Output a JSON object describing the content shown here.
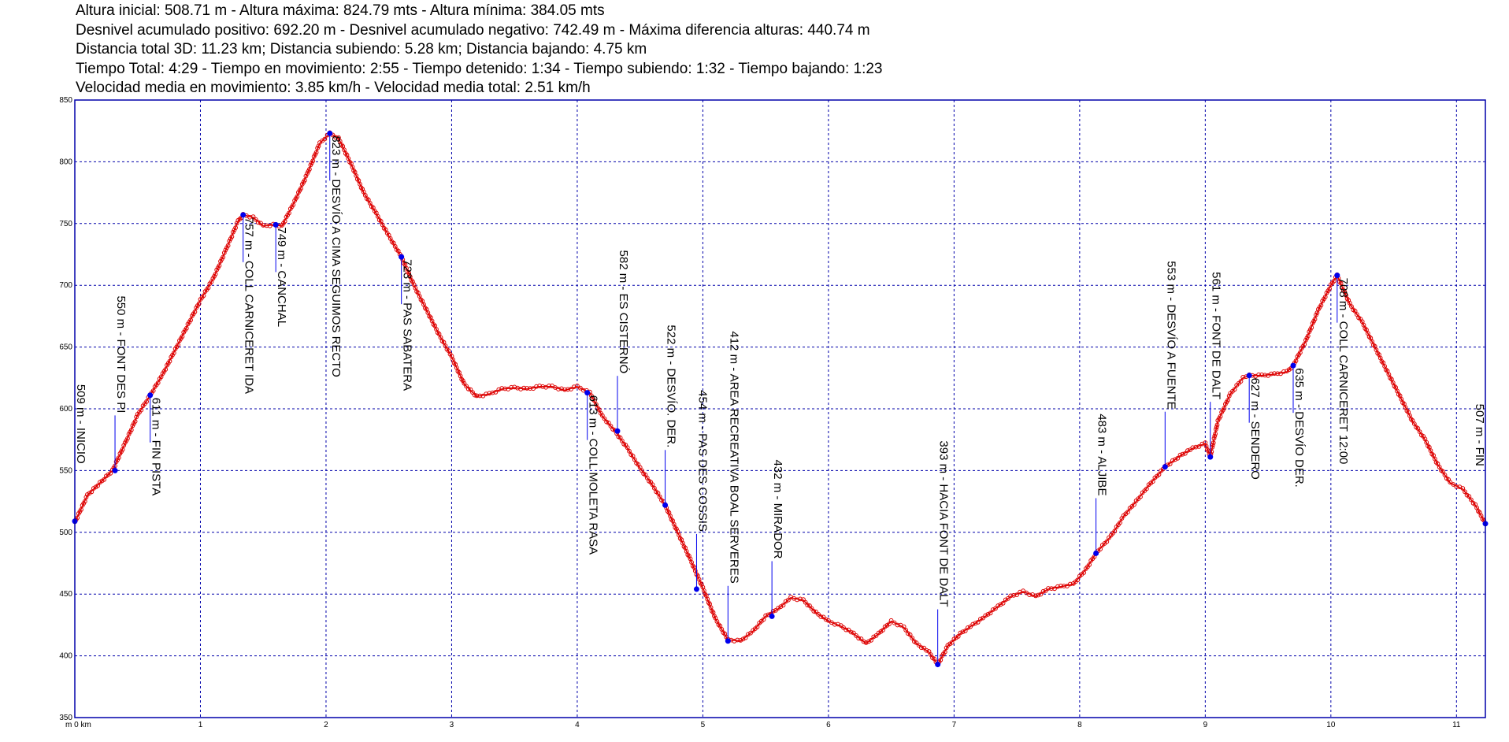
{
  "stats": [
    "Altura inicial: 508.71 m - Altura máxima: 824.79 mts - Altura mínima: 384.05 mts",
    "Desnivel acumulado positivo: 692.20 m  - Desnivel acumulado negativo: 742.49 m - Máxima diferencia alturas: 440.74 m",
    "Distancia total 3D: 11.23 km; Distancia subiendo: 5.28 km; Distancia bajando: 4.75 km",
    "Tiempo Total: 4:29 - Tiempo en movimiento: 2:55 - Tiempo detenido: 1:34 - Tiempo subiendo: 1:32 - Tiempo bajando: 1:23",
    "Velocidad media en movimiento: 3.85 km/h - Velocidad media total: 2.51 km/h"
  ],
  "chart_data": {
    "type": "line",
    "xlim": [
      0,
      11.23
    ],
    "ylim": [
      350,
      850
    ],
    "x_ticks": [
      1,
      2,
      3,
      4,
      5,
      6,
      7,
      8,
      9,
      10,
      11
    ],
    "x_tick_labels": [
      "1",
      "2",
      "3",
      "4",
      "5",
      "6",
      "7",
      "8",
      "9",
      "10",
      "11"
    ],
    "x_origin_label": "m 0 km",
    "y_ticks": [
      350,
      400,
      450,
      500,
      550,
      600,
      650,
      700,
      750,
      800,
      850
    ],
    "y_tick_labels": [
      "350",
      "400",
      "450",
      "500",
      "550",
      "600",
      "650",
      "700",
      "750",
      "800",
      "850"
    ],
    "grid": true,
    "colors": {
      "profile": "#dd0000",
      "waypoint": "#0000ee",
      "grid": "#0000aa",
      "frame": "#0000aa"
    },
    "series": [
      {
        "x": [
          0,
          0.1,
          0.2,
          0.3,
          0.4,
          0.5,
          0.6,
          0.7,
          0.8,
          0.9,
          1.0,
          1.1,
          1.2,
          1.3,
          1.34,
          1.42,
          1.5,
          1.58,
          1.65,
          1.75,
          1.85,
          1.95,
          2.03,
          2.1,
          2.2,
          2.3,
          2.4,
          2.5,
          2.6,
          2.7,
          2.8,
          2.9,
          3.0,
          3.1,
          3.2,
          3.3,
          3.4,
          3.5,
          3.6,
          3.7,
          3.8,
          3.9,
          4.0,
          4.1,
          4.2,
          4.3,
          4.4,
          4.5,
          4.6,
          4.7,
          4.8,
          4.9,
          5.0,
          5.1,
          5.2,
          5.3,
          5.4,
          5.5,
          5.6,
          5.7,
          5.8,
          5.9,
          6.0,
          6.1,
          6.2,
          6.3,
          6.4,
          6.5,
          6.6,
          6.7,
          6.8,
          6.87,
          6.95,
          7.05,
          7.15,
          7.25,
          7.35,
          7.45,
          7.55,
          7.65,
          7.75,
          7.85,
          7.95,
          8.05,
          8.13,
          8.25,
          8.35,
          8.45,
          8.55,
          8.68,
          8.8,
          8.9,
          9.0,
          9.04,
          9.1,
          9.2,
          9.3,
          9.35,
          9.45,
          9.55,
          9.65,
          9.7,
          9.8,
          9.9,
          10.0,
          10.05,
          10.15,
          10.25,
          10.35,
          10.45,
          10.55,
          10.65,
          10.75,
          10.85,
          10.95,
          11.05,
          11.15,
          11.23
        ],
        "y": [
          508,
          530,
          540,
          550,
          572,
          595,
          611,
          628,
          648,
          668,
          688,
          705,
          728,
          752,
          757,
          755,
          748,
          749,
          748,
          768,
          790,
          815,
          823,
          819,
          798,
          775,
          758,
          740,
          723,
          700,
          680,
          660,
          642,
          620,
          610,
          612,
          616,
          617,
          616,
          618,
          618,
          615,
          618,
          613,
          594,
          582,
          568,
          552,
          538,
          522,
          500,
          478,
          455,
          430,
          413,
          412,
          420,
          432,
          438,
          447,
          445,
          435,
          428,
          424,
          418,
          410,
          418,
          428,
          423,
          410,
          403,
          393,
          408,
          418,
          425,
          432,
          440,
          448,
          452,
          448,
          454,
          456,
          458,
          470,
          483,
          497,
          513,
          525,
          538,
          553,
          562,
          568,
          572,
          561,
          590,
          612,
          625,
          627,
          627,
          628,
          630,
          635,
          655,
          680,
          700,
          708,
          685,
          670,
          650,
          630,
          610,
          590,
          575,
          555,
          540,
          535,
          522,
          507
        ]
      }
    ],
    "waypoints": [
      {
        "x": 0.0,
        "y": 509,
        "label": "509 m - INICIO"
      },
      {
        "x": 0.32,
        "y": 550,
        "label": "550 m - FONT DES PI"
      },
      {
        "x": 0.6,
        "y": 611,
        "label": "611 m - FIN PISTA"
      },
      {
        "x": 1.34,
        "y": 757,
        "label": "757 m - COLL CARNICERET IDA"
      },
      {
        "x": 1.6,
        "y": 749,
        "label": "749 m - CANCHAL"
      },
      {
        "x": 2.03,
        "y": 823,
        "label": "823 m - DESVÍO A CIMA SEGUIMOS RECTO"
      },
      {
        "x": 2.6,
        "y": 723,
        "label": "723 m - PAS SABATERA"
      },
      {
        "x": 4.08,
        "y": 613,
        "label": "613 m - COLL MOLETA RASA"
      },
      {
        "x": 4.32,
        "y": 582,
        "label": "582 m - ES CISTERNÓ"
      },
      {
        "x": 4.7,
        "y": 522,
        "label": "522 m - DESVÍO. DER."
      },
      {
        "x": 4.95,
        "y": 454,
        "label": "454 m - PAS DES COSSIS"
      },
      {
        "x": 5.2,
        "y": 412,
        "label": "412 m - AREA RECREATIVA BOAL SERVERES"
      },
      {
        "x": 5.55,
        "y": 432,
        "label": "432 m - MIRADOR"
      },
      {
        "x": 6.87,
        "y": 393,
        "label": "393 m - HACIA FONT DE DALT"
      },
      {
        "x": 8.13,
        "y": 483,
        "label": "483 m - ALJIBE"
      },
      {
        "x": 8.68,
        "y": 553,
        "label": "553 m - DESVÍO A FUENTE"
      },
      {
        "x": 9.04,
        "y": 561,
        "label": "561 m - FONT DE DALT"
      },
      {
        "x": 9.35,
        "y": 627,
        "label": "627 m - SENDERO"
      },
      {
        "x": 9.7,
        "y": 635,
        "label": "635 m - DESVÍO DER."
      },
      {
        "x": 10.05,
        "y": 708,
        "label": "708 m - COLL CARNICERET 12:00"
      },
      {
        "x": 11.23,
        "y": 507,
        "label": "507 m - FIN"
      }
    ]
  }
}
